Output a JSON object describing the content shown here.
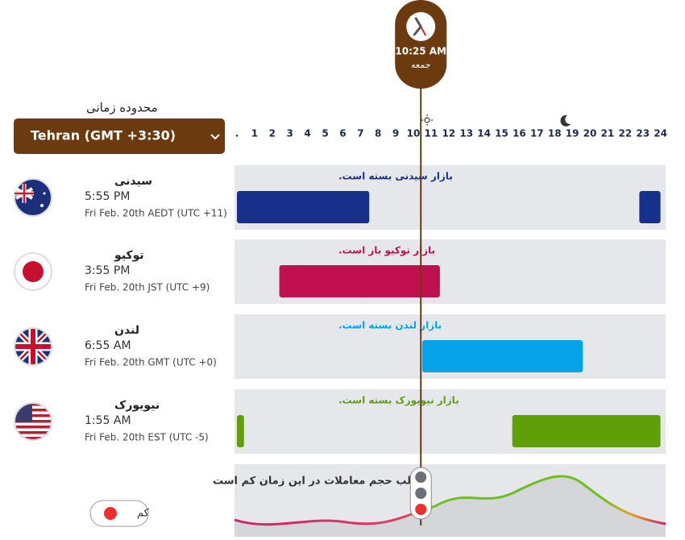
{
  "clock": {
    "time": "10:25 AM",
    "day": "جمعه",
    "hour": 10.42
  },
  "range": {
    "label": "محدوده زمانی",
    "selected": "Tehran (GMT +3:30)"
  },
  "hour_ticks": [
    {
      "value": 0,
      "label": "."
    },
    1,
    2,
    3,
    4,
    5,
    6,
    7,
    8,
    9,
    10,
    11,
    12,
    13,
    14,
    15,
    16,
    17,
    18,
    19,
    20,
    21,
    22,
    23,
    24
  ],
  "markets": [
    {
      "name": "سیدنی",
      "time": "5:55 PM",
      "date": "Fri Feb. 20th AEDT (UTC +11)",
      "status": "بازار سیدنی بسته است.",
      "color": "#17318a",
      "sessions": [
        [
          0,
          7.5
        ],
        [
          22.8,
          24
        ]
      ]
    },
    {
      "name": "توکیو",
      "time": "3:55 PM",
      "date": "Fri Feb. 20th JST (UTC +9)",
      "status": "بازار توکیو باز است.",
      "color": "#c01050",
      "sessions": [
        [
          2.4,
          11.5
        ]
      ]
    },
    {
      "name": "لندن",
      "time": "6:55 AM",
      "date": "Fri Feb. 20th GMT (UTC +0)",
      "status": "بازار لندن بسته است.",
      "color": "#08a2e8",
      "sessions": [
        [
          10.5,
          19.6
        ]
      ]
    },
    {
      "name": "نیویورک",
      "time": "1:55 AM",
      "date": "Fri Feb. 20th EST (UTC -5)",
      "status": "بازار نیویورک بسته است.",
      "color": "#5fa008",
      "sessions": [
        [
          0,
          0.4
        ],
        [
          15.6,
          24
        ]
      ]
    }
  ],
  "volume": {
    "message": ".اغلب حجم معاملات در این زمان کم است",
    "level": "کم"
  }
}
